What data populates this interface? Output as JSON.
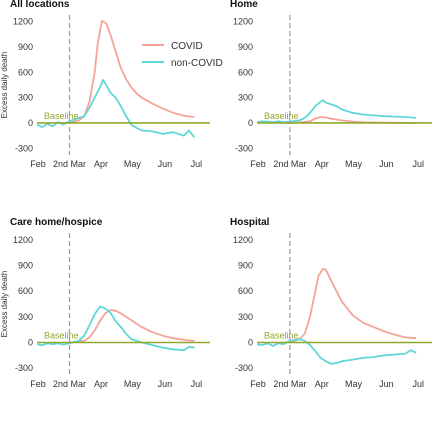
{
  "colors": {
    "covid": "#f4a39a",
    "non_covid": "#5fd7d9",
    "baseline": "#8fa82c",
    "vline": "#9a9a9a"
  },
  "legend": {
    "covid": "COVID",
    "non_covid": "non-COVID"
  },
  "axis": {
    "ylabel": "Excess daily death",
    "y_ticks": [
      "1200",
      "900",
      "600",
      "300",
      "0",
      "-300"
    ],
    "x_ticks": [
      "Feb",
      "2nd Mar",
      "Apr",
      "May",
      "Jun",
      "Jul"
    ]
  },
  "baseline_label": "Baseline",
  "chart_data": [
    {
      "type": "line",
      "title": "All locations",
      "xlabel": "",
      "ylabel": "Excess daily death",
      "xlim": [
        0,
        165
      ],
      "ylim": [
        -380,
        1280
      ],
      "x_ticks": {
        "Feb": 1,
        "2nd Mar": 31,
        "Apr": 61,
        "May": 91,
        "Jun": 122,
        "Jul": 152
      },
      "y_ticks": [
        -300,
        0,
        300,
        600,
        900,
        1200
      ],
      "baseline": 0,
      "vline_x": 31,
      "series": [
        {
          "name": "COVID",
          "x": [
            31,
            40,
            45,
            50,
            55,
            58,
            62,
            66,
            70,
            75,
            80,
            85,
            90,
            95,
            100,
            110,
            120,
            130,
            140,
            150
          ],
          "y": [
            0,
            30,
            80,
            250,
            600,
            950,
            1210,
            1180,
            1050,
            850,
            650,
            520,
            420,
            350,
            300,
            230,
            170,
            120,
            85,
            70
          ]
        },
        {
          "name": "non-COVID",
          "x": [
            0,
            5,
            10,
            15,
            20,
            25,
            31,
            40,
            45,
            50,
            55,
            60,
            63,
            66,
            70,
            75,
            80,
            85,
            90,
            95,
            100,
            110,
            120,
            130,
            140,
            145,
            150
          ],
          "y": [
            -20,
            -50,
            -10,
            -40,
            10,
            -20,
            20,
            60,
            80,
            180,
            300,
            420,
            510,
            450,
            360,
            300,
            200,
            80,
            -20,
            -60,
            -90,
            -100,
            -130,
            -110,
            -150,
            -90,
            -170
          ]
        }
      ]
    },
    {
      "type": "line",
      "title": "Home",
      "xlabel": "",
      "ylabel": "",
      "xlim": [
        0,
        165
      ],
      "ylim": [
        -380,
        1280
      ],
      "x_ticks": {
        "Feb": 1,
        "2nd Mar": 31,
        "Apr": 61,
        "May": 91,
        "Jun": 122,
        "Jul": 152
      },
      "y_ticks": [
        -300,
        0,
        300,
        600,
        900,
        1200
      ],
      "baseline": 0,
      "vline_x": 31,
      "series": [
        {
          "name": "COVID",
          "x": [
            31,
            40,
            50,
            55,
            60,
            65,
            70,
            80,
            90,
            100,
            120,
            150
          ],
          "y": [
            0,
            5,
            20,
            50,
            70,
            65,
            50,
            30,
            15,
            8,
            3,
            0
          ]
        },
        {
          "name": "non-COVID",
          "x": [
            0,
            5,
            10,
            15,
            20,
            25,
            31,
            40,
            45,
            50,
            55,
            60,
            62,
            65,
            70,
            75,
            80,
            90,
            100,
            110,
            120,
            130,
            140,
            150
          ],
          "y": [
            10,
            20,
            15,
            10,
            20,
            10,
            15,
            30,
            60,
            120,
            200,
            250,
            270,
            240,
            220,
            200,
            160,
            120,
            100,
            90,
            80,
            75,
            70,
            60
          ]
        }
      ]
    },
    {
      "type": "line",
      "title": "Care home/hospice",
      "xlabel": "",
      "ylabel": "Excess daily death",
      "xlim": [
        0,
        165
      ],
      "ylim": [
        -380,
        1280
      ],
      "x_ticks": {
        "Feb": 1,
        "2nd Mar": 31,
        "Apr": 61,
        "May": 91,
        "Jun": 122,
        "Jul": 152
      },
      "y_ticks": [
        -300,
        0,
        300,
        600,
        900,
        1200
      ],
      "baseline": 0,
      "vline_x": 31,
      "series": [
        {
          "name": "COVID",
          "x": [
            31,
            45,
            50,
            55,
            60,
            65,
            70,
            75,
            80,
            90,
            100,
            110,
            120,
            130,
            140,
            150
          ],
          "y": [
            0,
            20,
            60,
            140,
            250,
            340,
            380,
            370,
            340,
            260,
            180,
            120,
            80,
            50,
            30,
            20
          ]
        },
        {
          "name": "non-COVID",
          "x": [
            0,
            5,
            10,
            15,
            20,
            25,
            31,
            40,
            45,
            50,
            55,
            60,
            65,
            70,
            75,
            80,
            85,
            90,
            100,
            110,
            120,
            130,
            140,
            145,
            150
          ],
          "y": [
            -20,
            -30,
            -10,
            -20,
            -10,
            -25,
            -10,
            20,
            80,
            200,
            330,
            420,
            400,
            350,
            250,
            180,
            100,
            40,
            0,
            -30,
            -60,
            -80,
            -90,
            -50,
            -60
          ]
        }
      ]
    },
    {
      "type": "line",
      "title": "Hospital",
      "xlabel": "",
      "ylabel": "",
      "xlim": [
        0,
        165
      ],
      "ylim": [
        -380,
        1280
      ],
      "x_ticks": {
        "Feb": 1,
        "2nd Mar": 31,
        "Apr": 61,
        "May": 91,
        "Jun": 122,
        "Jul": 152
      },
      "y_ticks": [
        -300,
        0,
        300,
        600,
        900,
        1200
      ],
      "baseline": 0,
      "vline_x": 31,
      "series": [
        {
          "name": "COVID",
          "x": [
            31,
            40,
            45,
            50,
            55,
            58,
            62,
            65,
            70,
            75,
            80,
            85,
            90,
            100,
            110,
            120,
            130,
            140,
            150
          ],
          "y": [
            0,
            40,
            100,
            300,
            600,
            780,
            860,
            850,
            720,
            600,
            480,
            400,
            320,
            230,
            180,
            130,
            90,
            60,
            50
          ]
        },
        {
          "name": "non-COVID",
          "x": [
            0,
            5,
            10,
            15,
            20,
            25,
            31,
            40,
            45,
            50,
            55,
            60,
            65,
            70,
            75,
            80,
            90,
            100,
            110,
            120,
            130,
            140,
            145,
            150
          ],
          "y": [
            -20,
            -30,
            -10,
            -40,
            -10,
            -20,
            20,
            40,
            20,
            -30,
            -100,
            -180,
            -220,
            -250,
            -240,
            -220,
            -200,
            -180,
            -170,
            -150,
            -140,
            -130,
            -90,
            -120
          ]
        }
      ]
    }
  ]
}
